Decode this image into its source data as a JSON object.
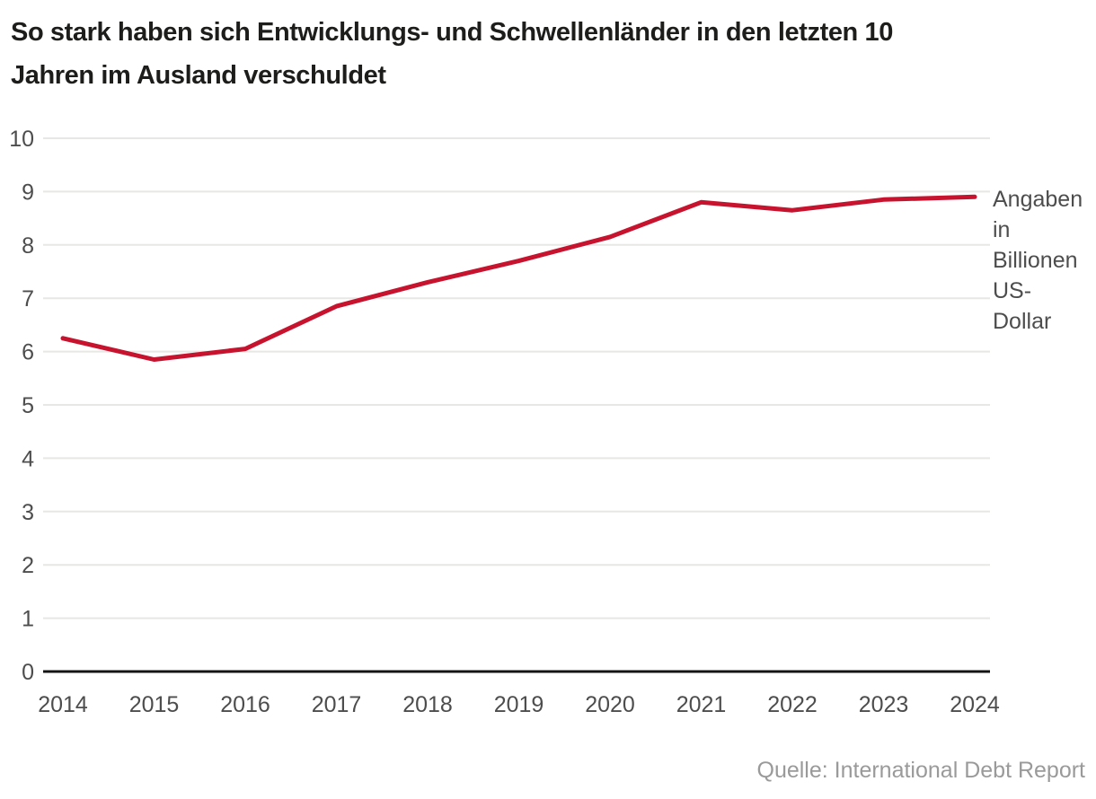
{
  "title": "So stark haben sich Entwicklungs- und Schwellenländer in den letzten 10\nJahren im Ausland verschuldet",
  "annotation": "Angaben\nin\nBillionen\nUS-\nDollar",
  "source": "Quelle: International Debt Report",
  "colors": {
    "line": "#c8132f",
    "grid": "#e7e7e5",
    "axis": "#141414",
    "tick_text": "#4d4d4d",
    "title_text": "#1d1d1b",
    "muted_text": "#9a9a9a",
    "background": "#ffffff"
  },
  "chart_data": {
    "type": "line",
    "title": "So stark haben sich Entwicklungs- und Schwellenländer in den letzten 10 Jahren im Ausland verschuldet",
    "unit_annotation": "Angaben in Billionen US-Dollar",
    "source": "Quelle: International Debt Report",
    "categories": [
      "2014",
      "2015",
      "2016",
      "2017",
      "2018",
      "2019",
      "2020",
      "2021",
      "2022",
      "2023",
      "2024"
    ],
    "values": [
      6.25,
      5.85,
      6.05,
      6.85,
      7.3,
      7.7,
      8.15,
      8.8,
      8.65,
      8.85,
      8.9
    ],
    "xlabel": "",
    "ylabel": "",
    "ylim": [
      0,
      10
    ],
    "yticks": [
      0,
      1,
      2,
      3,
      4,
      5,
      6,
      7,
      8,
      9,
      10
    ],
    "grid": "horizontal",
    "legend_position": "none",
    "line_color": "#c8132f"
  }
}
